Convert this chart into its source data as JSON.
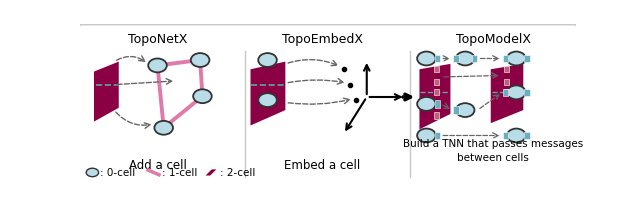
{
  "bg_color": "#ffffff",
  "border_color": "#c8c8c8",
  "panel1_title": "TopoNetX",
  "panel2_title": "TopoEmbedX",
  "panel3_title": "TopoModelX",
  "panel1_caption": "Add a cell",
  "panel2_caption": "Embed a cell",
  "panel3_caption": "Build a TNN that passes messages\nbetween cells",
  "legend_0cell": ": 0-cell",
  "legend_1cell": ": 1-cell",
  "legend_2cell": ": 2-cell",
  "cell0_color": "#b8dce8",
  "cell0_edge": "#333333",
  "cell1_color": "#e07aaa",
  "cell2_color": "#8b0045",
  "arrow_gray": "#666666",
  "teal_color": "#5ba8a0",
  "small_rect_teal": "#6aafc0",
  "small_rect_pink": "#c0607a"
}
